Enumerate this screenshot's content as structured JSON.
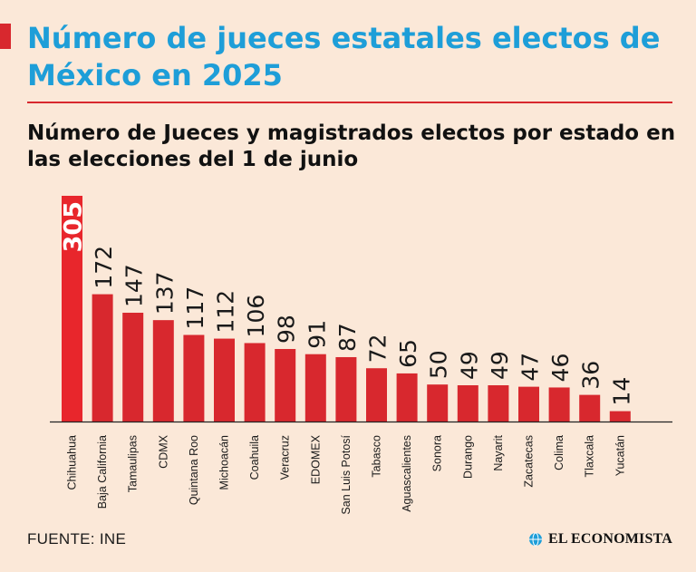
{
  "header": {
    "title": "Número de jueces estatales electos de México en 2025",
    "subtitle": "Número de Jueces y magistrados electos por estado en las elecciones del 1 de junio"
  },
  "footer": {
    "source": "FUENTE: INE",
    "brand": "EL ECONOMISTA",
    "brand_icon": "globe-icon"
  },
  "colors": {
    "highlight": "#e8262c",
    "bar": "#d8282e",
    "title": "#1e9ed8",
    "background": "#fbe8d8"
  },
  "chart_data": {
    "type": "bar",
    "categories": [
      "Chihuahua",
      "Baja California",
      "Tamaulipas",
      "CDMX",
      "Quintana Roo",
      "Michoacán",
      "Coahuila",
      "Veracruz",
      "EDOMEX",
      "San Luis Potosí",
      "Tabasco",
      "Aguascalientes",
      "Sonora",
      "Durango",
      "Nayarit",
      "Zacatecas",
      "Colima",
      "Tlaxcala",
      "Yucatán"
    ],
    "values": [
      305,
      172,
      147,
      137,
      117,
      112,
      106,
      98,
      91,
      87,
      72,
      65,
      50,
      49,
      49,
      47,
      46,
      36,
      14
    ],
    "value_labels": [
      "305",
      "172",
      "147",
      "137",
      "117",
      "112",
      "106",
      "98",
      "91",
      "87",
      "72",
      "65",
      "50",
      "49",
      "49",
      "47",
      "46",
      "36",
      "14"
    ],
    "highlight_category": "Chihuahua",
    "title": "",
    "xlabel": "",
    "ylabel": "",
    "ylim": [
      0,
      305
    ],
    "grid": false,
    "legend": false
  }
}
